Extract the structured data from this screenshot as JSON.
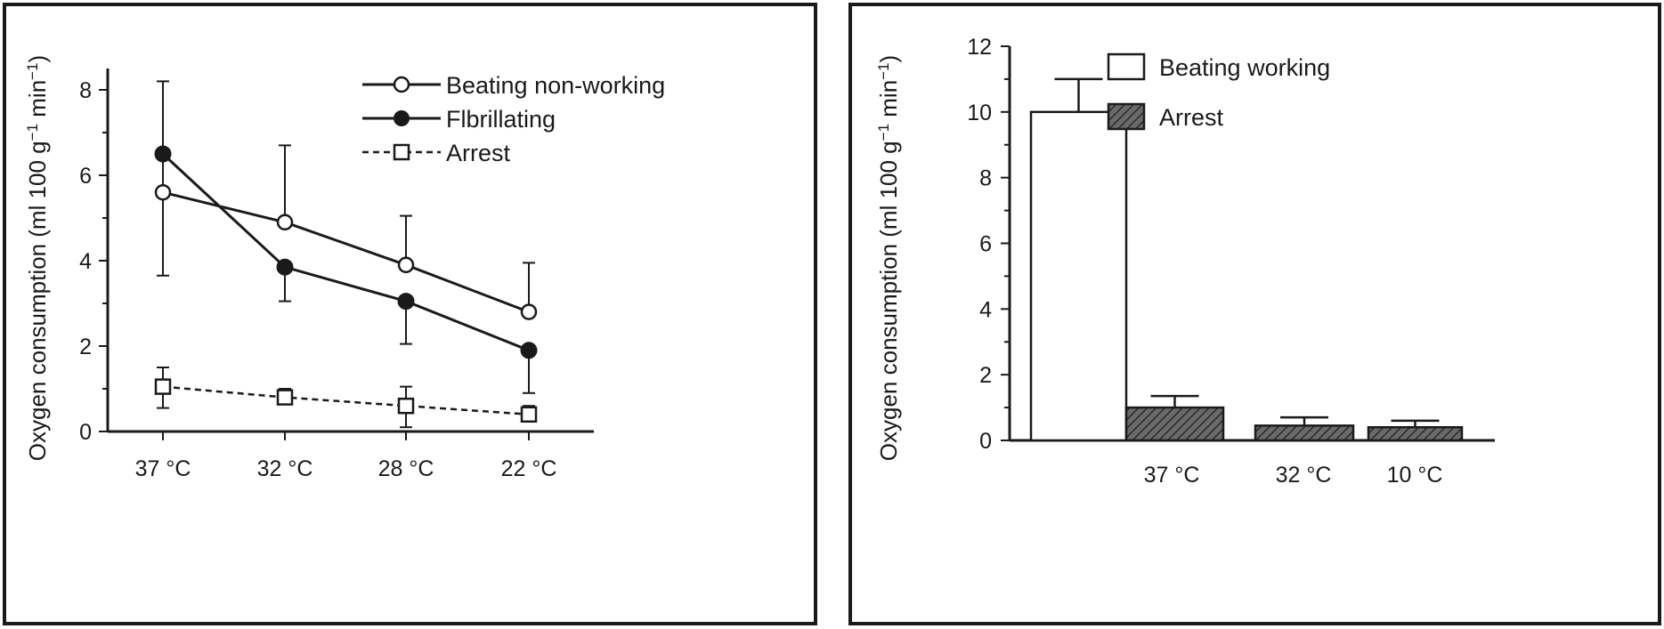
{
  "chart_data": [
    {
      "type": "line",
      "title": "",
      "xlabel": "",
      "ylabel": "Oxygen consumption (ml 100 g",
      "ylabel_sup1": "−1",
      "ylabel_mid": " min",
      "ylabel_sup2": "−1",
      "ylabel_end": ")",
      "categories": [
        "37 °C",
        "32 °C",
        "28 °C",
        "22 °C"
      ],
      "ylim": [
        0,
        8.5
      ],
      "yticks": [
        "0",
        "2",
        "4",
        "6",
        "8"
      ],
      "legend_position": "top-right",
      "grid": false,
      "series": [
        {
          "name": "Beating non-working",
          "marker": "open-circle",
          "line": "solid",
          "values": [
            5.6,
            4.9,
            3.9,
            2.8
          ],
          "err_upper": [
            8.2,
            6.7,
            5.05,
            3.95
          ],
          "err_lower": [
            3.65,
            4.9,
            3.9,
            2.8
          ]
        },
        {
          "name": "Flbrillating",
          "marker": "filled-circle",
          "line": "solid",
          "values": [
            6.5,
            3.85,
            3.05,
            1.9
          ],
          "err_upper": [
            6.5,
            3.85,
            3.05,
            1.9
          ],
          "err_lower": [
            6.5,
            3.05,
            2.05,
            0.9
          ]
        },
        {
          "name": "Arrest",
          "marker": "open-square",
          "line": "dashed",
          "values": [
            1.05,
            0.8,
            0.6,
            0.4
          ],
          "err_upper": [
            1.5,
            1.0,
            1.05,
            0.6
          ],
          "err_lower": [
            0.55,
            0.65,
            0.1,
            0.3
          ]
        }
      ]
    },
    {
      "type": "bar",
      "title": "",
      "xlabel": "",
      "ylabel": "Oxygen consumption (ml 100 g",
      "ylabel_sup1": "−1",
      "ylabel_mid": " min",
      "ylabel_sup2": "−1",
      "ylabel_end": ")",
      "categories": [
        "37 °C",
        "32 °C",
        "10 °C"
      ],
      "ylim": [
        0,
        12
      ],
      "yticks": [
        "0",
        "2",
        "4",
        "6",
        "8",
        "10",
        "12"
      ],
      "legend_position": "top-right",
      "grid": false,
      "series": [
        {
          "name": "Beating working",
          "fill": "white",
          "values": [
            10.0,
            null,
            null
          ],
          "err_upper": [
            11.0,
            null,
            null
          ]
        },
        {
          "name": "Arrest",
          "fill": "hatched",
          "values": [
            1.0,
            0.45,
            0.4
          ],
          "err_upper": [
            1.35,
            0.7,
            0.6
          ]
        }
      ]
    }
  ]
}
